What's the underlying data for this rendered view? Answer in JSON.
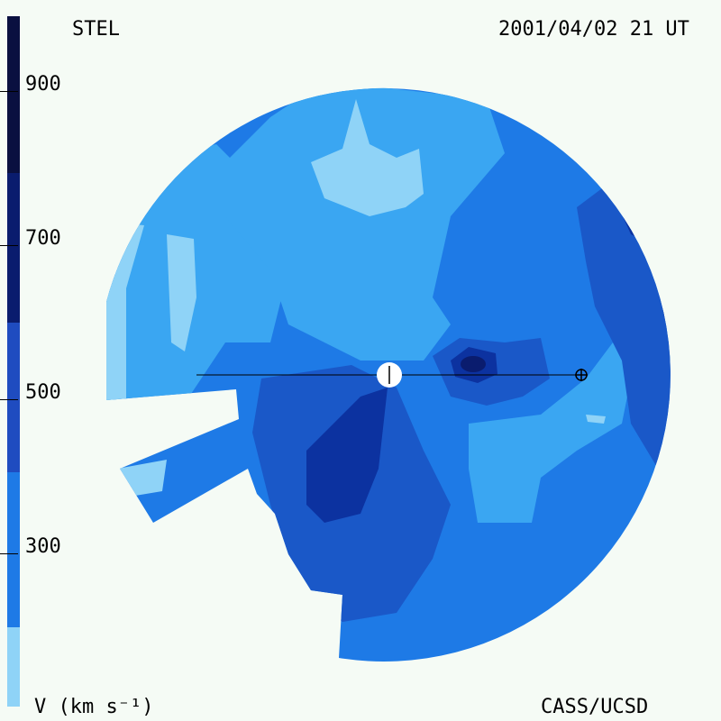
{
  "header": {
    "observatory": "STEL",
    "datetime": "2001/04/02 21 UT"
  },
  "footer": {
    "units_label": "V (km s⁻¹)",
    "credit": "CASS/UCSD"
  },
  "colorbar": {
    "ticks": [
      "900",
      "700",
      "500",
      "300"
    ],
    "bands": [
      "#0a1040",
      "#0a1c6e",
      "#0a2f98",
      "#1f4cc0",
      "#1e6be0",
      "#3aa2f0",
      "#8fd3f7"
    ]
  },
  "map": {
    "sun_marker": "Sun",
    "earth_marker": "Earth",
    "colors": {
      "slow": "#8fd3f7",
      "v300": "#3aa6f2",
      "v400": "#1e7ae6",
      "v500": "#1a58c8",
      "v600": "#0c32a0",
      "v700": "#0a1c6e"
    }
  }
}
